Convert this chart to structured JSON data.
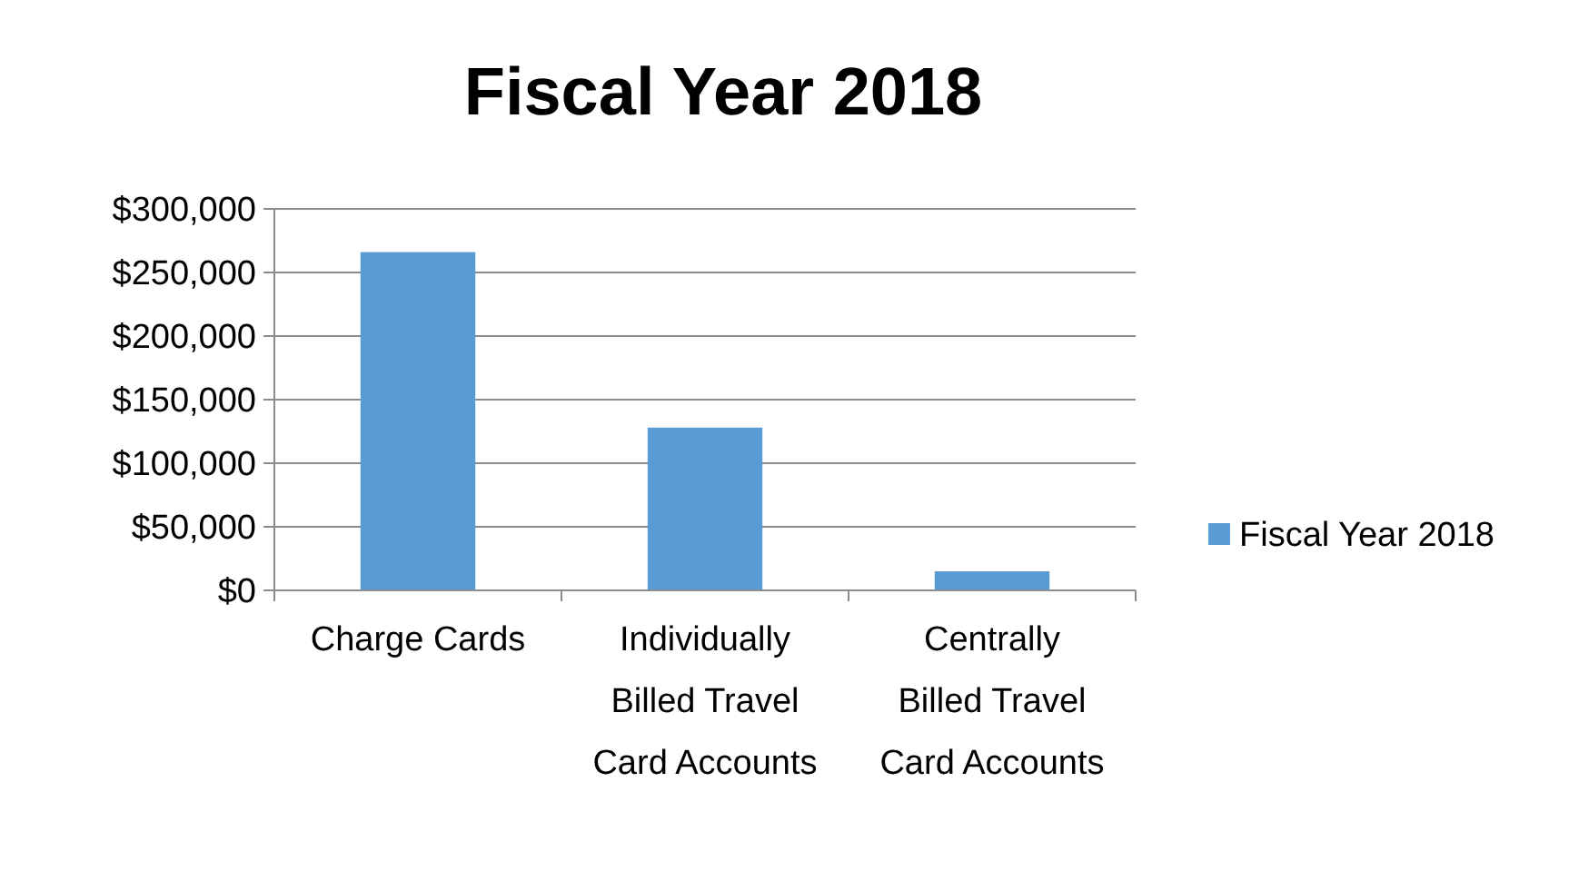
{
  "chart_data": {
    "type": "bar",
    "title": "Fiscal Year 2018",
    "categories": [
      "Charge Cards",
      "Individually Billed Travel Card Accounts",
      "Centrally Billed Travel Card Accounts"
    ],
    "series": [
      {
        "name": "Fiscal Year 2018",
        "color": "#5b9bd5",
        "values": [
          266000,
          128000,
          15000
        ]
      }
    ],
    "ylim": [
      0,
      300000
    ],
    "yticks": [
      {
        "value": 0,
        "label": "$0"
      },
      {
        "value": 50000,
        "label": "$50,000"
      },
      {
        "value": 100000,
        "label": "$100,000"
      },
      {
        "value": 150000,
        "label": "$150,000"
      },
      {
        "value": 200000,
        "label": "$200,000"
      },
      {
        "value": 250000,
        "label": "$250,000"
      },
      {
        "value": 300000,
        "label": "$300,000"
      }
    ],
    "grid": "y",
    "legend": "right"
  }
}
